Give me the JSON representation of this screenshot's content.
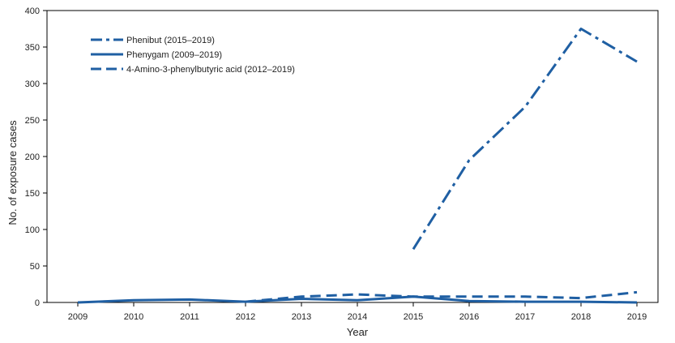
{
  "chart_data": {
    "type": "line",
    "xlabel": "Year",
    "ylabel": "No. of exposure cases",
    "ylim": [
      0,
      400
    ],
    "yticks": [
      0,
      50,
      100,
      150,
      200,
      250,
      300,
      350,
      400
    ],
    "x": [
      2009,
      2010,
      2011,
      2012,
      2013,
      2014,
      2015,
      2016,
      2017,
      2018,
      2019
    ],
    "grid": false,
    "legend_position": "top-left",
    "color": "#1f5fa3",
    "series": [
      {
        "name": "Phenibut (2015–2019)",
        "style": "dash-dot",
        "values": [
          null,
          null,
          null,
          null,
          null,
          null,
          73,
          195,
          268,
          375,
          330
        ]
      },
      {
        "name": "Phenygam (2009–2019)",
        "style": "solid",
        "values": [
          0,
          3,
          4,
          1,
          5,
          3,
          8,
          2,
          1,
          1,
          0
        ]
      },
      {
        "name": "4-Amino-3-phenylbutyric acid (2012–2019)",
        "style": "dashed",
        "values": [
          null,
          null,
          null,
          1,
          8,
          11,
          8,
          8,
          8,
          6,
          14
        ]
      }
    ]
  }
}
